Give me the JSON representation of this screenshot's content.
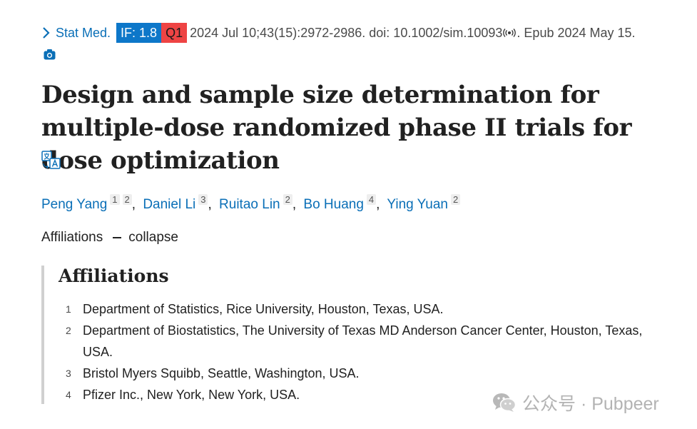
{
  "citation": {
    "journal": "Stat Med.",
    "impact_factor": "IF: 1.8",
    "quartile": "Q1",
    "date_text": "2024 Jul 10;43(15):2972-2986. doi: 10.1002/sim.10093",
    "epub_text": ". Epub 2024 May 15.",
    "colors": {
      "link": "#0a6fb7",
      "if_badge": "#0d77c9",
      "q_badge": "#ee4444"
    }
  },
  "icons": {
    "chevron": "chevron-right-icon",
    "doi": "broadcast-icon",
    "camera": "camera-icon",
    "translate": "translate-icon",
    "collapse": "minus-icon",
    "watermark": "wechat-icon"
  },
  "article": {
    "title": "Design and sample size determination for multiple-dose randomized phase II trials for dose optimization"
  },
  "authors": [
    {
      "name": "Peng Yang",
      "refs": [
        "1",
        "2"
      ]
    },
    {
      "name": "Daniel Li",
      "refs": [
        "3"
      ]
    },
    {
      "name": "Ruitao Lin",
      "refs": [
        "2"
      ]
    },
    {
      "name": "Bo Huang",
      "refs": [
        "4"
      ]
    },
    {
      "name": "Ying Yuan",
      "refs": [
        "2"
      ]
    }
  ],
  "affiliations": {
    "toggle_label": "Affiliations",
    "collapse_label": "collapse",
    "heading": "Affiliations",
    "items": [
      {
        "num": "1",
        "text": "Department of Statistics, Rice University, Houston, Texas, USA."
      },
      {
        "num": "2",
        "text": "Department of Biostatistics, The University of Texas MD Anderson Cancer Center, Houston, Texas, USA."
      },
      {
        "num": "3",
        "text": "Bristol Myers Squibb, Seattle, Washington, USA."
      },
      {
        "num": "4",
        "text": "Pfizer Inc., New York, New York, USA."
      }
    ]
  },
  "watermark": {
    "text": "公众号 · Pubpeer"
  }
}
